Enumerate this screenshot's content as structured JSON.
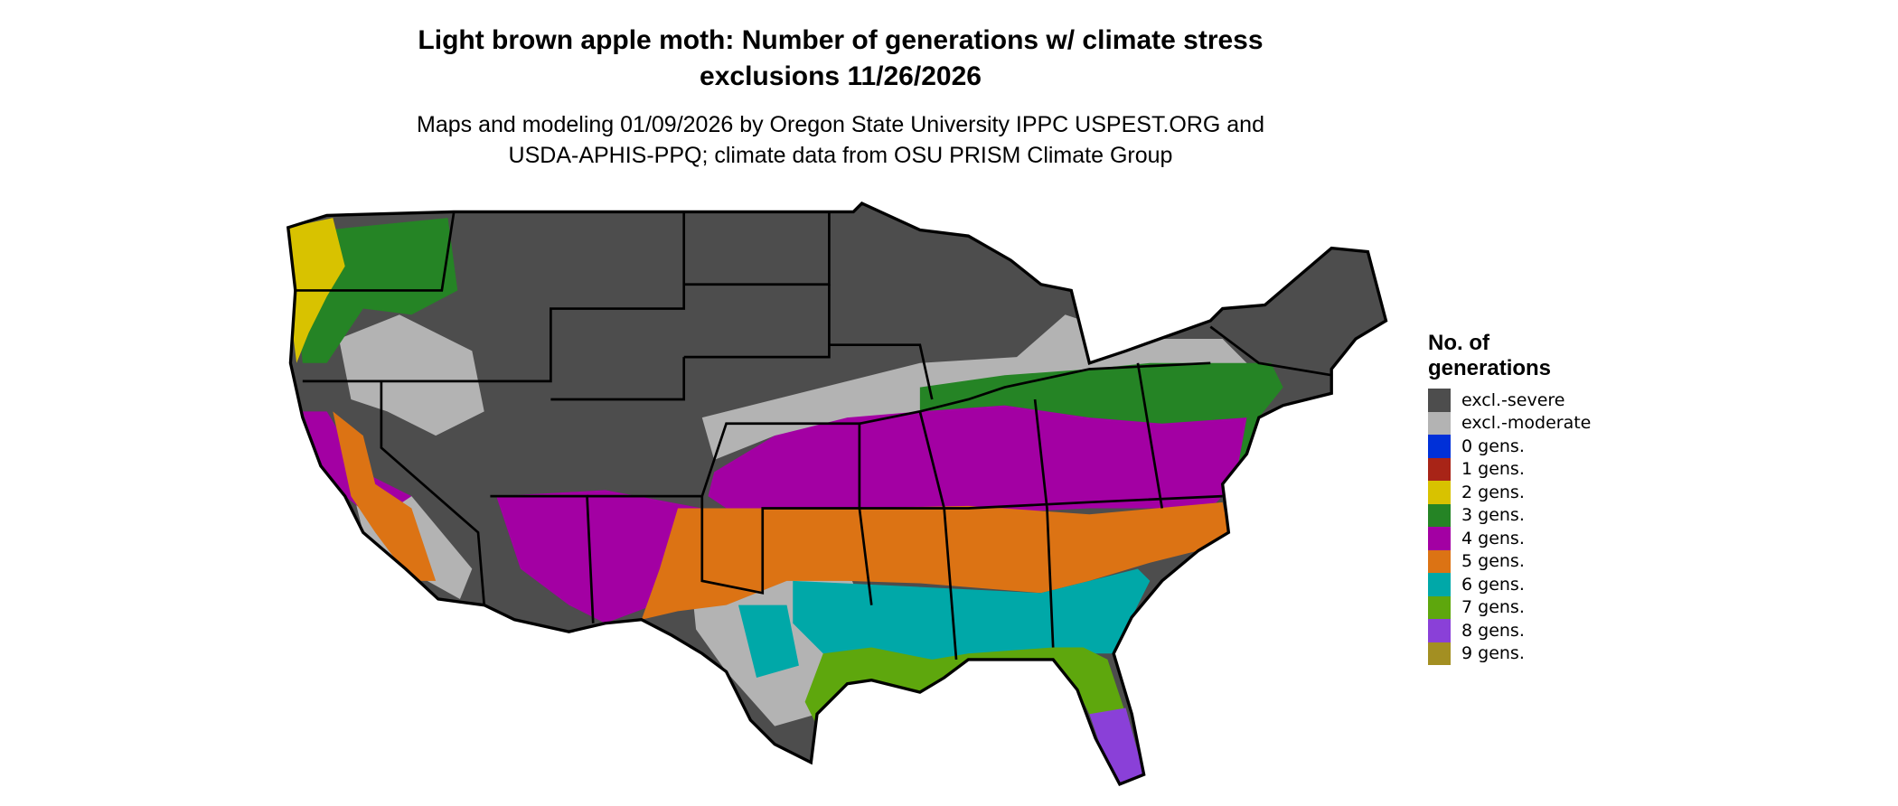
{
  "title": {
    "line1": "Light brown apple moth: Number of generations w/ climate stress",
    "line2": "exclusions 11/26/2026"
  },
  "subtitle": {
    "line1": "Maps and modeling 01/09/2026 by Oregon State University IPPC USPEST.ORG and",
    "line2": "USDA-APHIS-PPQ; climate data from OSU PRISM Climate Group"
  },
  "legend": {
    "title_line1": "No. of",
    "title_line2": "generations",
    "items": [
      {
        "label": "excl.-severe",
        "color": "#4d4d4d"
      },
      {
        "label": "excl.-moderate",
        "color": "#b3b3b3"
      },
      {
        "label": "0 gens.",
        "color": "#0030d8"
      },
      {
        "label": "1 gens.",
        "color": "#a82417"
      },
      {
        "label": "2 gens.",
        "color": "#d8c200"
      },
      {
        "label": "3 gens.",
        "color": "#258425"
      },
      {
        "label": "4 gens.",
        "color": "#a300a3"
      },
      {
        "label": "5 gens.",
        "color": "#dc7314"
      },
      {
        "label": "6 gens.",
        "color": "#00a8a8"
      },
      {
        "label": "7 gens.",
        "color": "#5ea70d"
      },
      {
        "label": "8 gens.",
        "color": "#8a40d8"
      },
      {
        "label": "9 gens.",
        "color": "#a38f22"
      }
    ]
  }
}
